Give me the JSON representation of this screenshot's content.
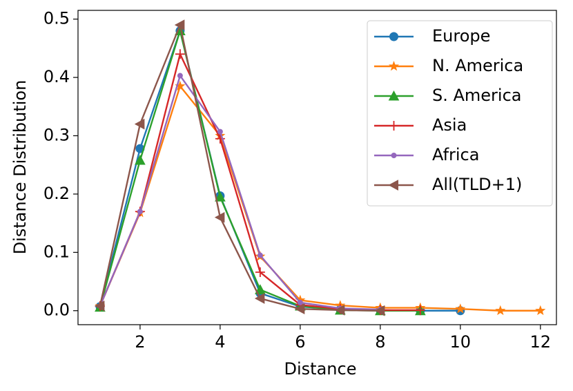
{
  "chart_data": {
    "type": "line",
    "xlabel": "Distance",
    "ylabel": "Distance Distribution",
    "xlim": [
      0.45,
      12.4
    ],
    "ylim": [
      -0.024,
      0.515
    ],
    "xticks": [
      2,
      4,
      6,
      8,
      10,
      12
    ],
    "yticks": [
      {
        "value": 0,
        "label": "0.0"
      },
      0.1,
      0.2,
      0.3,
      0.4,
      0.5
    ],
    "legend": "upper right",
    "series": [
      {
        "name": "Europe",
        "color": "#1f77b4",
        "marker": "o",
        "x": [
          1,
          2,
          3,
          4,
          5,
          6,
          7,
          8,
          9,
          10
        ],
        "values": [
          0.007,
          0.278,
          0.48,
          0.197,
          0.03,
          0.007,
          0.002,
          0.001,
          0.0,
          0.0
        ]
      },
      {
        "name": "N. America",
        "color": "#ff7f0e",
        "marker": "*",
        "x": [
          1,
          2,
          3,
          4,
          5,
          6,
          7,
          8,
          9,
          10,
          11,
          12
        ],
        "values": [
          0.008,
          0.168,
          0.385,
          0.3,
          0.093,
          0.018,
          0.009,
          0.005,
          0.005,
          0.003,
          0.0,
          0.0
        ]
      },
      {
        "name": "S. America",
        "color": "#2ca02c",
        "marker": "^",
        "x": [
          1,
          2,
          3,
          4,
          5,
          6,
          7,
          8,
          9
        ],
        "values": [
          0.006,
          0.258,
          0.48,
          0.195,
          0.036,
          0.008,
          0.001,
          0.0,
          0.0
        ]
      },
      {
        "name": "Asia",
        "color": "#d62728",
        "marker": "+",
        "x": [
          1,
          2,
          3,
          4,
          5,
          6,
          7,
          8,
          9
        ],
        "values": [
          0.008,
          0.17,
          0.44,
          0.295,
          0.066,
          0.01,
          0.003,
          0.001,
          0.001
        ]
      },
      {
        "name": "Africa",
        "color": "#9467bd",
        "marker": ".",
        "x": [
          1,
          2,
          3,
          4,
          5,
          6,
          7,
          8
        ],
        "values": [
          0.008,
          0.17,
          0.403,
          0.307,
          0.095,
          0.014,
          0.004,
          0.002
        ]
      },
      {
        "name": "All(TLD+1)",
        "color": "#8c564b",
        "marker": "<",
        "x": [
          1,
          2,
          3,
          4,
          5,
          6,
          7,
          8
        ],
        "values": [
          0.008,
          0.32,
          0.49,
          0.16,
          0.021,
          0.003,
          0.001,
          0.0
        ]
      }
    ]
  }
}
